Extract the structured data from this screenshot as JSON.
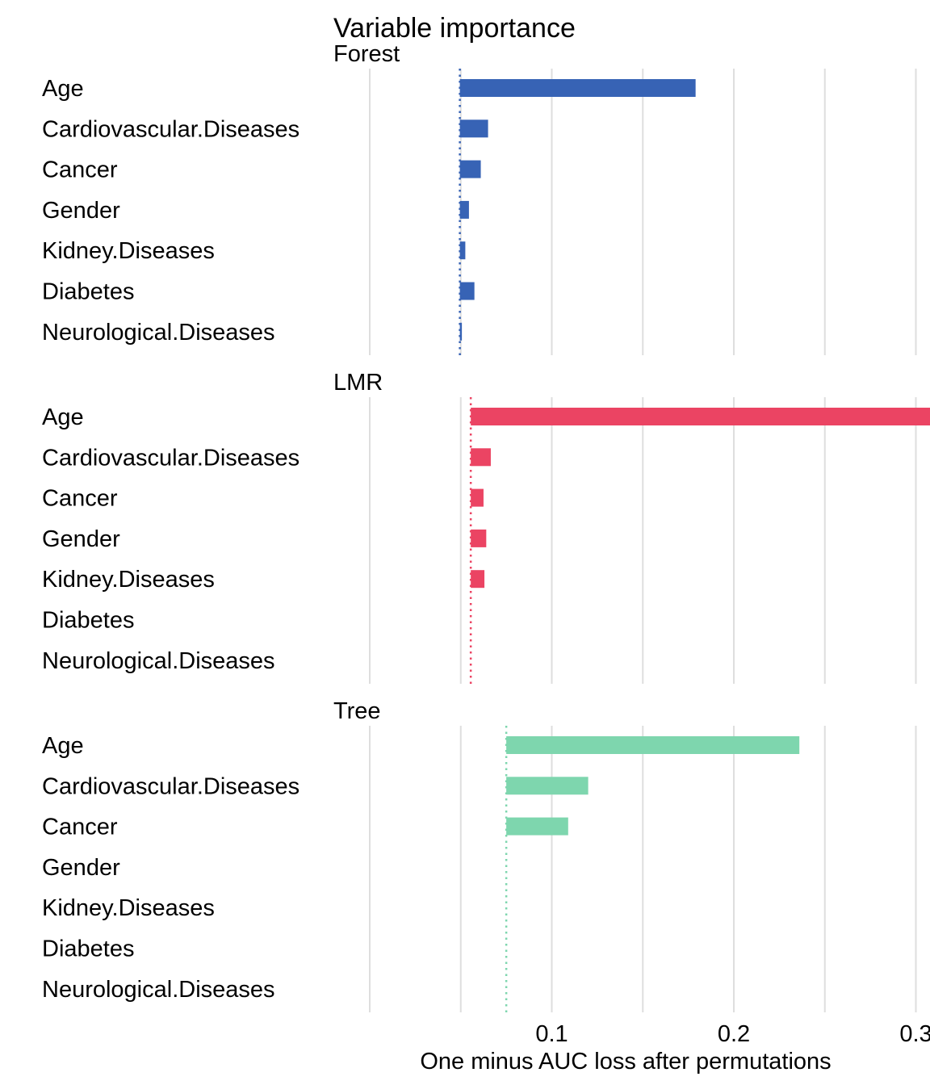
{
  "chart_data": {
    "type": "bar",
    "orientation": "horizontal",
    "title": "Variable importance",
    "xlabel": "One minus AUC loss after permutations",
    "ylabel": "",
    "xlim": [
      0.0,
      0.3
    ],
    "x_ticks": [
      0.1,
      0.2,
      0.3
    ],
    "x_tick_labels": [
      "0.1",
      "0.2",
      "0.3"
    ],
    "grid": "vertical",
    "variables": [
      "Age",
      "Cardiovascular.Diseases",
      "Cancer",
      "Gender",
      "Kidney.Diseases",
      "Diabetes",
      "Neurological.Diseases"
    ],
    "panels": [
      {
        "name": "Forest",
        "color": "#3763b5",
        "baseline": 0.0495,
        "values": [
          0.179,
          0.065,
          0.061,
          0.0545,
          0.0525,
          0.0575,
          0.0505
        ]
      },
      {
        "name": "LMR",
        "color": "#eb4463",
        "baseline": 0.0555,
        "values": [
          0.337,
          0.0665,
          0.0625,
          0.064,
          0.063,
          0.0555,
          0.0555
        ]
      },
      {
        "name": "Tree",
        "color": "#7ed6ae",
        "baseline": 0.075,
        "values": [
          0.236,
          0.12,
          0.109,
          0.075,
          0.075,
          0.075,
          0.075
        ]
      }
    ]
  }
}
